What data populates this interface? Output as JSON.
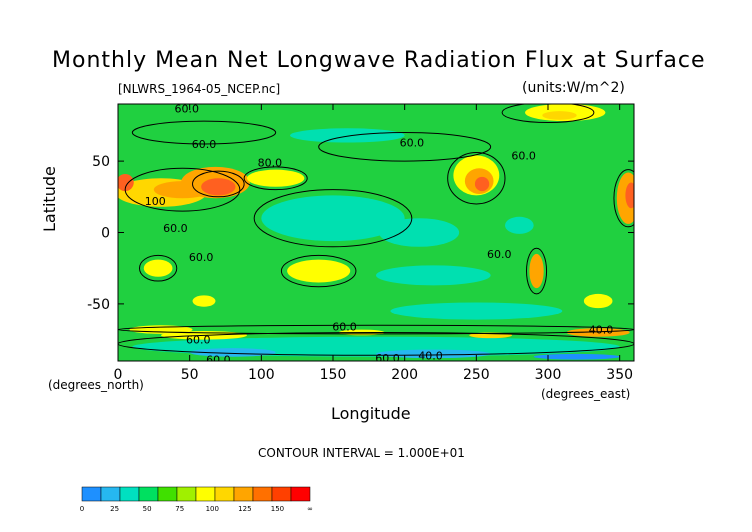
{
  "chart_data": {
    "type": "heatmap",
    "title": "Monthly Mean Net Longwave Radiation Flux at Surface",
    "subtitle_left": "[NLWRS_1964-05_NCEP.nc]",
    "subtitle_right": "(units:W/m^2)",
    "xlabel": "Longitude",
    "ylabel": "Latitude",
    "x_unit": "(degrees_east)",
    "y_unit": "(degrees_north)",
    "xlim": [
      0,
      360
    ],
    "ylim": [
      -90,
      90
    ],
    "x_ticks": [
      0,
      50,
      100,
      150,
      200,
      250,
      300,
      350
    ],
    "y_ticks": [
      -50,
      0,
      50
    ],
    "footer": "CONTOUR INTERVAL = 1.000E+01",
    "contour_labels": [
      {
        "text": "60.0",
        "lon": 48,
        "lat": 87
      },
      {
        "text": "60.0",
        "lon": 60,
        "lat": 62
      },
      {
        "text": "80.0",
        "lon": 106,
        "lat": 49
      },
      {
        "text": "100",
        "lon": 26,
        "lat": 22
      },
      {
        "text": "60.0",
        "lon": 40,
        "lat": 3
      },
      {
        "text": "60.0",
        "lon": 58,
        "lat": -17
      },
      {
        "text": "60.0",
        "lon": 205,
        "lat": 63
      },
      {
        "text": "60.0",
        "lon": 283,
        "lat": 54
      },
      {
        "text": "60.0",
        "lon": 266,
        "lat": -15
      },
      {
        "text": "60.0",
        "lon": 158,
        "lat": -66
      },
      {
        "text": "60.0",
        "lon": 56,
        "lat": -75
      },
      {
        "text": "60.0",
        "lon": 70,
        "lat": -89
      },
      {
        "text": "60.0",
        "lon": 188,
        "lat": -88
      },
      {
        "text": "40.0",
        "lon": 218,
        "lat": -86
      },
      {
        "text": "40.0",
        "lon": 337,
        "lat": -68
      }
    ],
    "colorbar": {
      "levels": [
        "0",
        "25",
        "50",
        "75",
        "100",
        "125",
        "150",
        "∞"
      ],
      "colors": [
        "#1e90ff",
        "#26b7f0",
        "#00e0c0",
        "#00e060",
        "#40e000",
        "#a0f000",
        "#ffff00",
        "#ffd700",
        "#ffa500",
        "#ff7000",
        "#ff4000",
        "#ff0000"
      ]
    }
  },
  "palette": {
    "background": "#20d040",
    "cyan_low": "#00e0b0",
    "blue_low": "#1e90ff",
    "teal": "#26b7f0",
    "yellow": "#ffff00",
    "gold": "#ffd700",
    "orange": "#ffa500",
    "red_orange": "#ff6020",
    "red": "#ff0000"
  },
  "field": [
    {
      "lon": 30,
      "lat": 28,
      "rx": 32,
      "ry": 10,
      "level": "gold"
    },
    {
      "lon": 45,
      "lat": 30,
      "rx": 20,
      "ry": 6,
      "level": "orange"
    },
    {
      "lon": 68,
      "lat": 35,
      "rx": 24,
      "ry": 11,
      "level": "orange"
    },
    {
      "lon": 70,
      "lat": 32,
      "rx": 12,
      "ry": 6,
      "level": "red_orange"
    },
    {
      "lon": 5,
      "lat": 35,
      "rx": 6,
      "ry": 6,
      "level": "red_orange"
    },
    {
      "lon": 110,
      "lat": 38,
      "rx": 20,
      "ry": 6,
      "level": "yellow"
    },
    {
      "lon": 250,
      "lat": 40,
      "rx": 16,
      "ry": 14,
      "level": "yellow"
    },
    {
      "lon": 252,
      "lat": 36,
      "rx": 10,
      "ry": 9,
      "level": "orange"
    },
    {
      "lon": 254,
      "lat": 34,
      "rx": 5,
      "ry": 5,
      "level": "red_orange"
    },
    {
      "lon": 356,
      "lat": 24,
      "rx": 8,
      "ry": 18,
      "level": "orange"
    },
    {
      "lon": 358,
      "lat": 26,
      "rx": 4,
      "ry": 9,
      "level": "red_orange"
    },
    {
      "lon": 312,
      "lat": 84,
      "rx": 28,
      "ry": 6,
      "level": "yellow"
    },
    {
      "lon": 308,
      "lat": 82,
      "rx": 12,
      "ry": 3,
      "level": "gold"
    },
    {
      "lon": 28,
      "lat": -25,
      "rx": 10,
      "ry": 6,
      "level": "yellow"
    },
    {
      "lon": 140,
      "lat": -27,
      "rx": 22,
      "ry": 8,
      "level": "yellow"
    },
    {
      "lon": 60,
      "lat": -48,
      "rx": 8,
      "ry": 4,
      "level": "yellow"
    },
    {
      "lon": 335,
      "lat": -48,
      "rx": 10,
      "ry": 5,
      "level": "yellow"
    },
    {
      "lon": 292,
      "lat": -27,
      "rx": 5,
      "ry": 12,
      "level": "orange"
    },
    {
      "lon": 280,
      "lat": 5,
      "rx": 10,
      "ry": 6,
      "level": "cyan_low"
    },
    {
      "lon": 150,
      "lat": 10,
      "rx": 50,
      "ry": 16,
      "level": "cyan_low"
    },
    {
      "lon": 210,
      "lat": 0,
      "rx": 28,
      "ry": 10,
      "level": "cyan_low"
    },
    {
      "lon": 250,
      "lat": -55,
      "rx": 60,
      "ry": 6,
      "level": "cyan_low"
    },
    {
      "lon": 160,
      "lat": 68,
      "rx": 40,
      "ry": 5,
      "level": "cyan_low"
    },
    {
      "lon": 220,
      "lat": -30,
      "rx": 40,
      "ry": 7,
      "level": "cyan_low"
    },
    {
      "lon": 180,
      "lat": -80,
      "rx": 170,
      "ry": 7,
      "level": "cyan_low"
    },
    {
      "lon": 80,
      "lat": -84,
      "rx": 30,
      "ry": 3,
      "level": "teal"
    },
    {
      "lon": 220,
      "lat": -85,
      "rx": 40,
      "ry": 3,
      "level": "teal"
    },
    {
      "lon": 320,
      "lat": -87,
      "rx": 30,
      "ry": 2,
      "level": "blue_low"
    },
    {
      "lon": 60,
      "lat": -72,
      "rx": 30,
      "ry": 3,
      "level": "yellow"
    },
    {
      "lon": 335,
      "lat": -70,
      "rx": 22,
      "ry": 3,
      "level": "orange"
    },
    {
      "lon": 170,
      "lat": -70,
      "rx": 16,
      "ry": 2,
      "level": "yellow"
    },
    {
      "lon": 30,
      "lat": -68,
      "rx": 22,
      "ry": 3,
      "level": "yellow"
    },
    {
      "lon": 260,
      "lat": -72,
      "rx": 15,
      "ry": 2,
      "level": "gold"
    }
  ],
  "contours": [
    {
      "lon": 45,
      "lat": 30,
      "rx": 40,
      "ry": 15
    },
    {
      "lon": 70,
      "lat": 34,
      "rx": 18,
      "ry": 9
    },
    {
      "lon": 250,
      "lat": 38,
      "rx": 20,
      "ry": 18
    },
    {
      "lon": 140,
      "lat": -27,
      "rx": 26,
      "ry": 11
    },
    {
      "lon": 300,
      "lat": 84,
      "rx": 32,
      "ry": 7
    },
    {
      "lon": 150,
      "lat": 10,
      "rx": 55,
      "ry": 20
    },
    {
      "lon": 356,
      "lat": 24,
      "rx": 10,
      "ry": 20
    },
    {
      "lon": 292,
      "lat": -27,
      "rx": 7,
      "ry": 16
    },
    {
      "lon": 28,
      "lat": -25,
      "rx": 13,
      "ry": 9
    },
    {
      "lon": 110,
      "lat": 38,
      "rx": 22,
      "ry": 8
    },
    {
      "lon": 180,
      "lat": -78,
      "rx": 180,
      "ry": 8
    },
    {
      "lon": 180,
      "lat": -68,
      "rx": 180,
      "ry": 3
    },
    {
      "lon": 200,
      "lat": 60,
      "rx": 60,
      "ry": 10
    },
    {
      "lon": 60,
      "lat": 70,
      "rx": 50,
      "ry": 8
    }
  ]
}
